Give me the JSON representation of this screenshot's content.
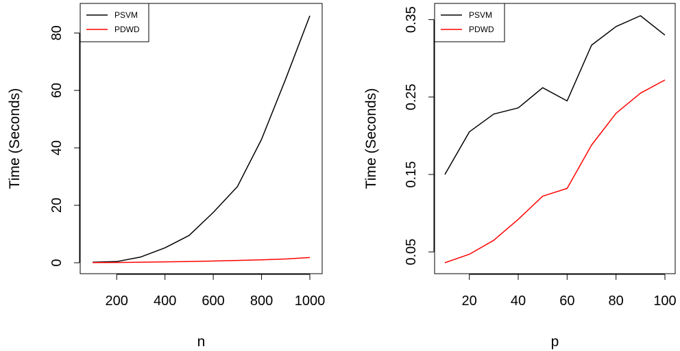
{
  "chart_data": [
    {
      "type": "line",
      "xlabel": "n",
      "ylabel": "Time (Seconds)",
      "xlim": [
        100,
        1000
      ],
      "ylim": [
        0,
        86
      ],
      "x_ticks": [
        200,
        400,
        600,
        800,
        1000
      ],
      "y_ticks": [
        0,
        20,
        40,
        60,
        80
      ],
      "legend": {
        "position": "top-left",
        "entries": [
          "PSVM",
          "PDWD"
        ]
      },
      "series": [
        {
          "name": "PSVM",
          "color": "#000000",
          "x": [
            100,
            200,
            300,
            400,
            500,
            600,
            700,
            800,
            900,
            1000
          ],
          "y": [
            0.2,
            0.4,
            2,
            5.2,
            9.5,
            17.5,
            26.5,
            43,
            64,
            86
          ]
        },
        {
          "name": "PDWD",
          "color": "#ff0000",
          "x": [
            100,
            200,
            300,
            400,
            500,
            600,
            700,
            800,
            900,
            1000
          ],
          "y": [
            0.05,
            0.1,
            0.2,
            0.3,
            0.4,
            0.6,
            0.8,
            1.0,
            1.3,
            1.8
          ]
        }
      ]
    },
    {
      "type": "line",
      "xlabel": "p",
      "ylabel": "Time (Seconds)",
      "xlim": [
        10,
        100
      ],
      "ylim": [
        0.036,
        0.355
      ],
      "x_ticks": [
        20,
        40,
        60,
        80,
        100
      ],
      "y_ticks": [
        0.05,
        0.15,
        0.25,
        0.35
      ],
      "y_tick_labels": [
        "0.05",
        "0.15",
        "0.25",
        "0.35"
      ],
      "legend": {
        "position": "top-left",
        "entries": [
          "PSVM",
          "PDWD"
        ]
      },
      "series": [
        {
          "name": "PSVM",
          "color": "#000000",
          "x": [
            10,
            20,
            30,
            40,
            50,
            60,
            70,
            80,
            90,
            100
          ],
          "y": [
            0.15,
            0.205,
            0.228,
            0.236,
            0.262,
            0.245,
            0.317,
            0.341,
            0.355,
            0.33
          ]
        },
        {
          "name": "PDWD",
          "color": "#ff0000",
          "x": [
            10,
            20,
            30,
            40,
            50,
            60,
            70,
            80,
            90,
            100
          ],
          "y": [
            0.036,
            0.047,
            0.065,
            0.092,
            0.122,
            0.132,
            0.188,
            0.229,
            0.255,
            0.272
          ]
        }
      ]
    }
  ]
}
